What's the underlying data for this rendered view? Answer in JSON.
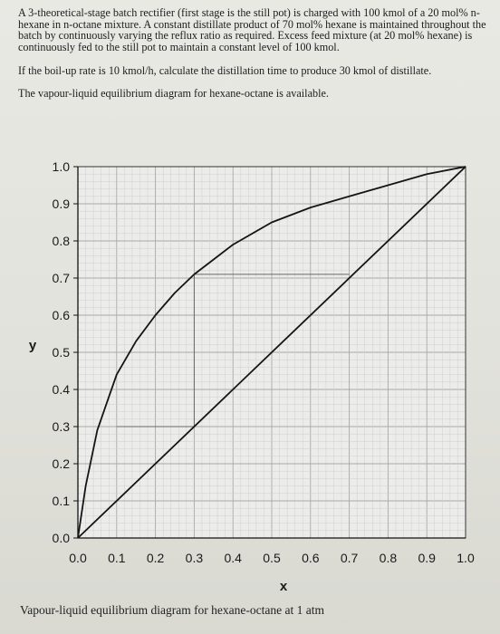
{
  "problem": {
    "paragraph1": "A 3-theoretical-stage batch rectifier (first stage is the still pot) is charged with 100 kmol of a 20 mol% n-hexane in n-octane mixture. A constant distillate product of 70 mol% hexane is maintained throughout the batch by continuously varying the reflux ratio as required. Excess feed mixture (at 20 mol% hexane) is continuously fed to the still pot to maintain a constant level of 100 kmol.",
    "question": "If the boil-up rate is 10 kmol/h, calculate the distillation time to produce 30 kmol of distillate.",
    "note": "The vapour-liquid equilibrium diagram for hexane-octane is available."
  },
  "chart_data": {
    "type": "line",
    "title": "",
    "xlabel": "x",
    "ylabel": "y",
    "xlim": [
      0,
      1
    ],
    "ylim": [
      0,
      1
    ],
    "grid": true,
    "x_tick_labels": [
      "0.0",
      "0.1",
      "0.2",
      "0.3",
      "0.4",
      "0.5",
      "0.6",
      "0.7",
      "0.8",
      "0.9",
      "1.0"
    ],
    "y_tick_labels": [
      "0.0",
      "0.1",
      "0.2",
      "0.3",
      "0.4",
      "0.5",
      "0.6",
      "0.7",
      "0.8",
      "0.9",
      "1.0"
    ],
    "series": [
      {
        "x": [
          0,
          0.02,
          0.05,
          0.08,
          0.1,
          0.15,
          0.2,
          0.25,
          0.3,
          0.35,
          0.4,
          0.5,
          0.6,
          0.7,
          0.8,
          0.9,
          1.0
        ],
        "y": [
          0,
          0.14,
          0.29,
          0.38,
          0.44,
          0.53,
          0.6,
          0.66,
          0.71,
          0.75,
          0.79,
          0.85,
          0.89,
          0.92,
          0.95,
          0.98,
          1.0
        ]
      },
      {
        "x": [
          0,
          1
        ],
        "y": [
          0,
          1
        ]
      }
    ],
    "construction_lines": [
      {
        "x": [
          0.3,
          0.7
        ],
        "y": [
          0.71,
          0.71
        ]
      },
      {
        "x": [
          0.3,
          0.3
        ],
        "y": [
          0.71,
          0.3
        ]
      },
      {
        "x": [
          0.1,
          0.3
        ],
        "y": [
          0.3,
          0.3
        ]
      }
    ],
    "caption": "Vapour-liquid equilibrium diagram for hexane-octane at 1 atm"
  }
}
